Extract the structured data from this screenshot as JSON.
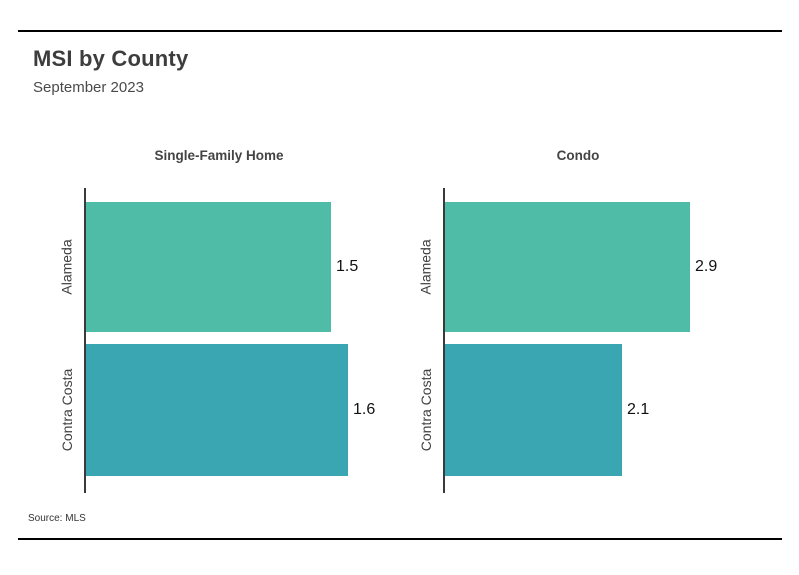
{
  "header": {
    "title": "MSI by County",
    "subtitle": "September 2023"
  },
  "footer": {
    "source": "Source: MLS"
  },
  "colors": {
    "alameda_bar": "#4EBCA7",
    "contra_costa_bar": "#3AA6B1",
    "axis": "#3A3A3A",
    "rule": "#000000",
    "title_text": "#3D3D3D"
  },
  "chart_data": [
    {
      "type": "bar",
      "orientation": "horizontal",
      "title": "Single-Family Home",
      "categories": [
        "Alameda",
        "Contra Costa"
      ],
      "values": [
        1.5,
        1.6
      ],
      "bar_colors": [
        "#4EBCA7",
        "#3AA6B1"
      ],
      "xlim": [
        0,
        1.65
      ],
      "grid": false,
      "legend": false,
      "value_labels_position": "right-of-bar"
    },
    {
      "type": "bar",
      "orientation": "horizontal",
      "title": "Condo",
      "categories": [
        "Alameda",
        "Contra Costa"
      ],
      "values": [
        2.9,
        2.1
      ],
      "bar_colors": [
        "#4EBCA7",
        "#3AA6B1"
      ],
      "xlim": [
        0,
        3.2
      ],
      "grid": false,
      "legend": false,
      "value_labels_position": "right-of-bar"
    }
  ]
}
